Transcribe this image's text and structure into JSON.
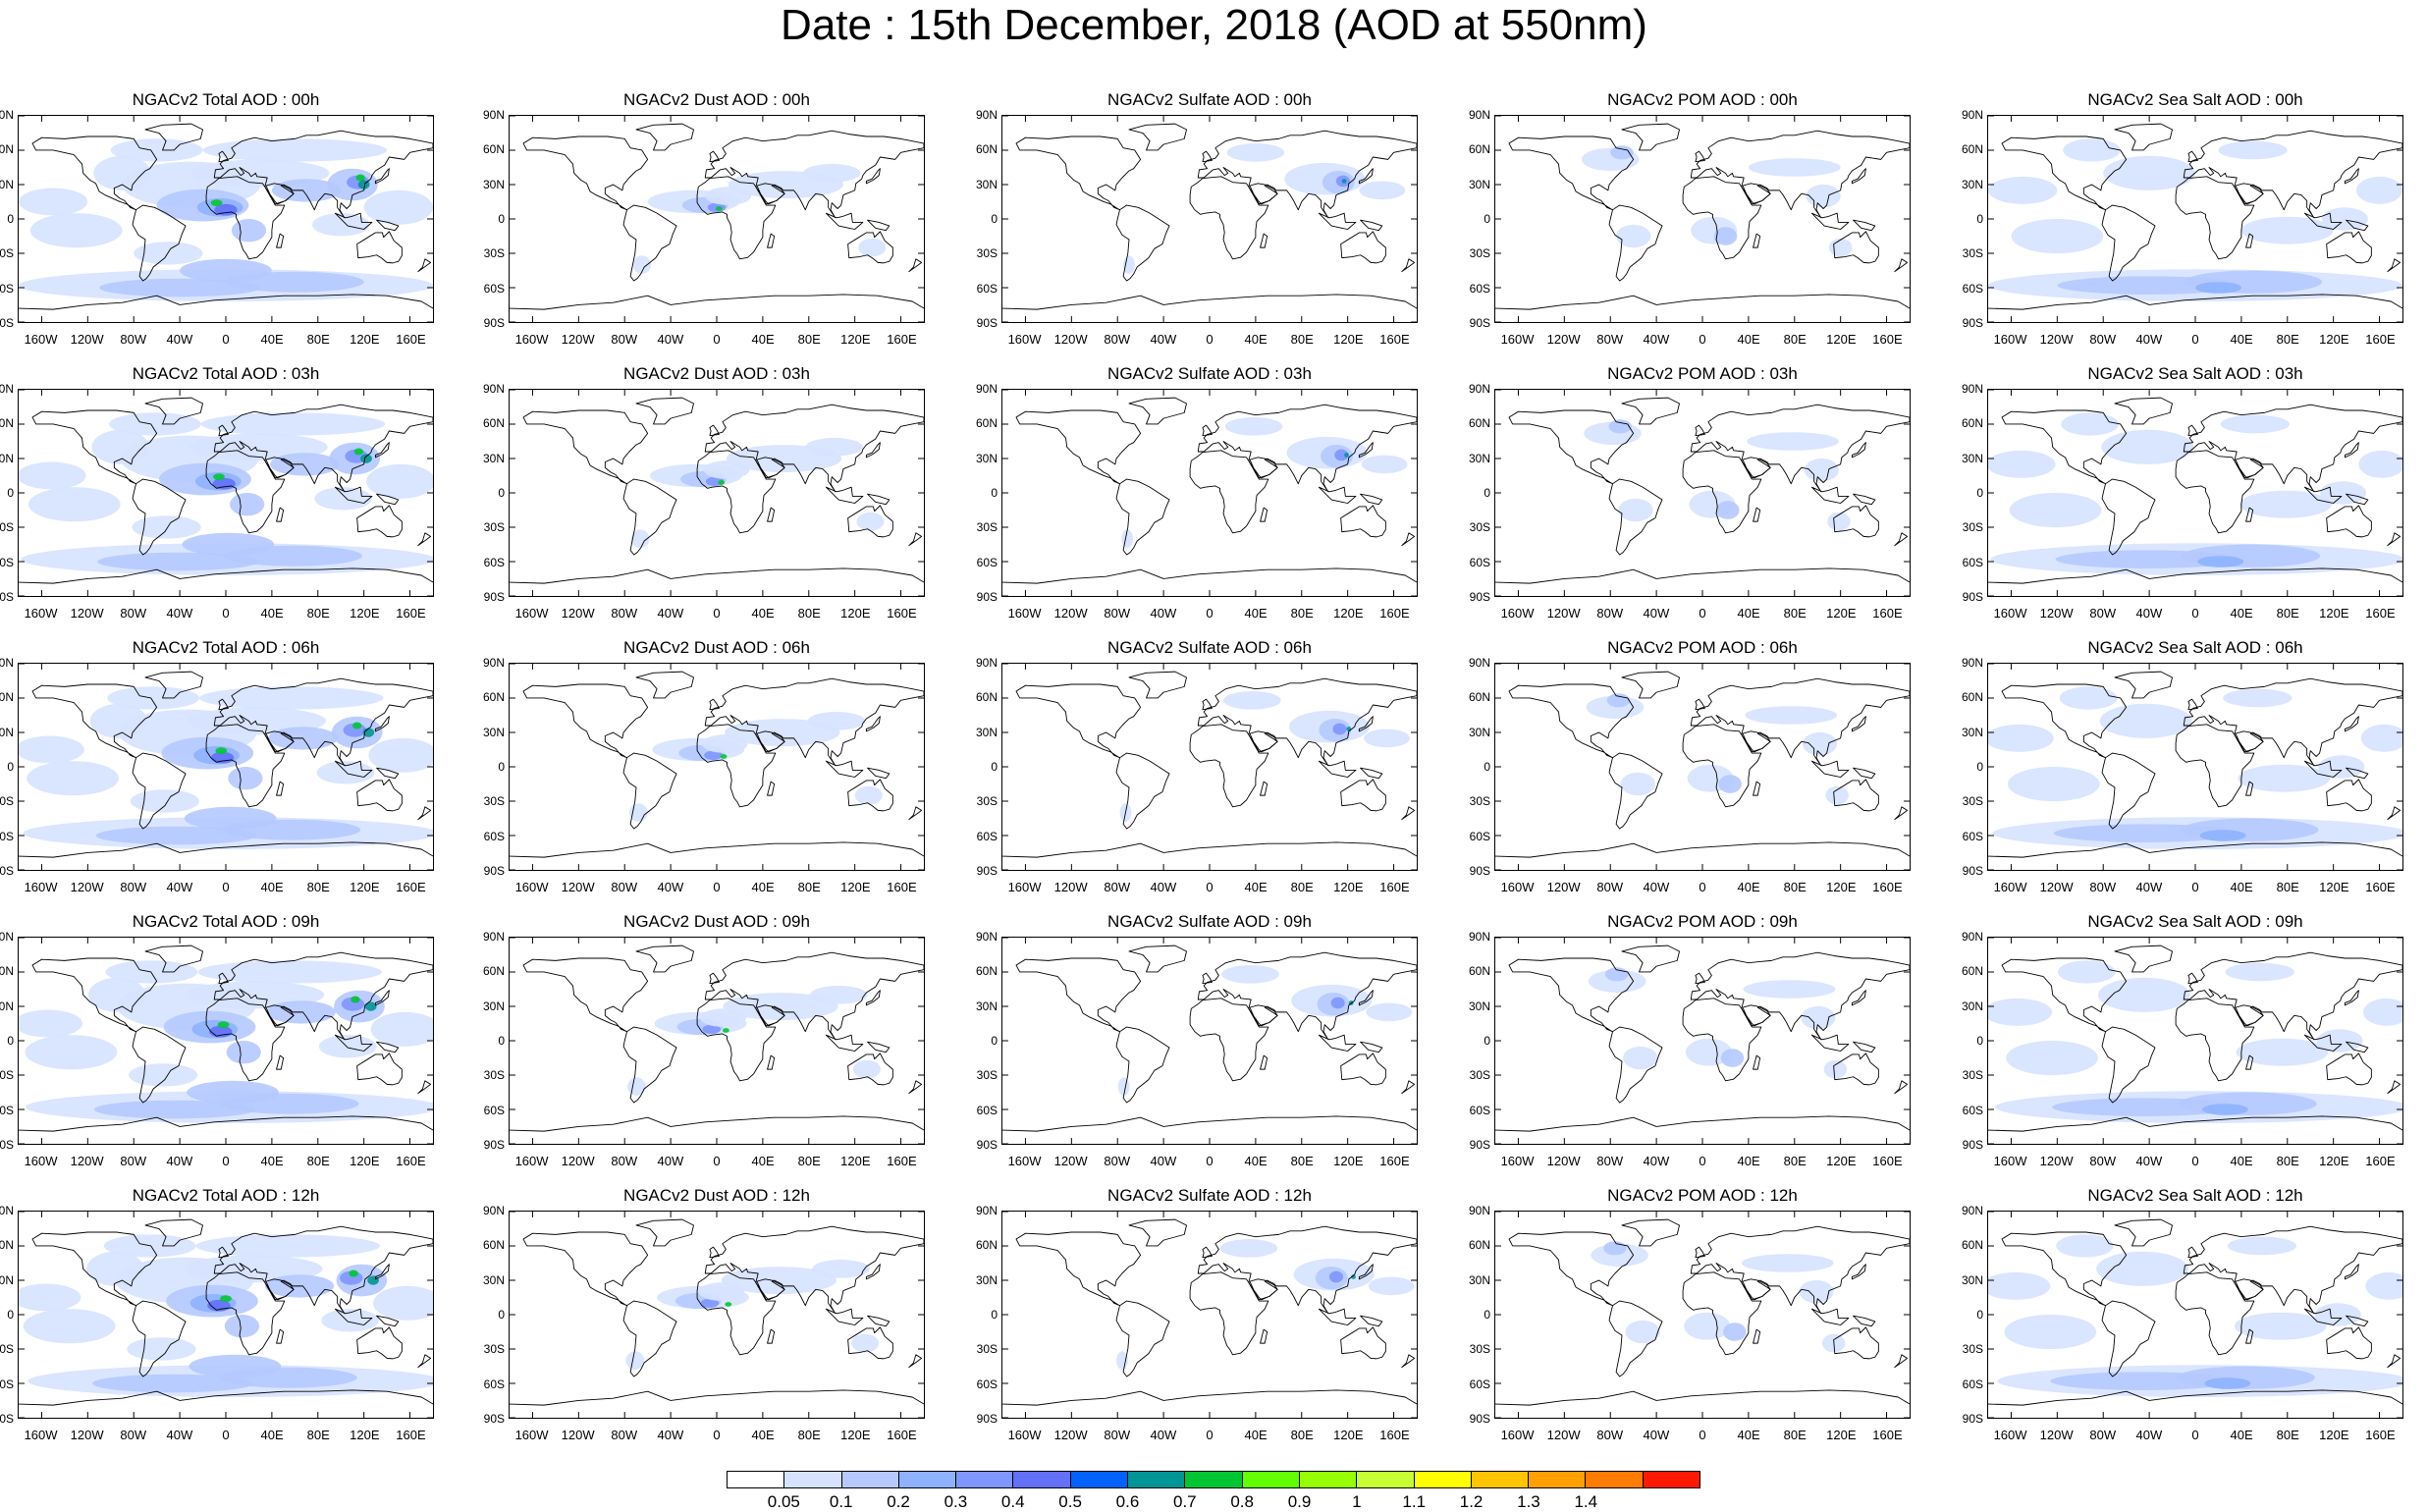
{
  "title": "Date : 15th December, 2018 (AOD at 550nm)",
  "panels": [
    {
      "title": "NGACv2 Total AOD : 00h",
      "field": "total",
      "hour": 0
    },
    {
      "title": "NGACv2 Dust AOD : 00h",
      "field": "dust",
      "hour": 0
    },
    {
      "title": "NGACv2 Sulfate AOD : 00h",
      "field": "sulfate",
      "hour": 0
    },
    {
      "title": "NGACv2 POM AOD : 00h",
      "field": "pom",
      "hour": 0
    },
    {
      "title": "NGACv2 Sea Salt AOD : 00h",
      "field": "seasalt",
      "hour": 0
    },
    {
      "title": "NGACv2 Total AOD : 03h",
      "field": "total",
      "hour": 3
    },
    {
      "title": "NGACv2 Dust AOD : 03h",
      "field": "dust",
      "hour": 3
    },
    {
      "title": "NGACv2 Sulfate AOD : 03h",
      "field": "sulfate",
      "hour": 3
    },
    {
      "title": "NGACv2 POM AOD : 03h",
      "field": "pom",
      "hour": 3
    },
    {
      "title": "NGACv2 Sea Salt AOD : 03h",
      "field": "seasalt",
      "hour": 3
    },
    {
      "title": "NGACv2 Total AOD : 06h",
      "field": "total",
      "hour": 6
    },
    {
      "title": "NGACv2 Dust AOD : 06h",
      "field": "dust",
      "hour": 6
    },
    {
      "title": "NGACv2 Sulfate AOD : 06h",
      "field": "sulfate",
      "hour": 6
    },
    {
      "title": "NGACv2 POM AOD : 06h",
      "field": "pom",
      "hour": 6
    },
    {
      "title": "NGACv2 Sea Salt AOD : 06h",
      "field": "seasalt",
      "hour": 6
    },
    {
      "title": "NGACv2 Total AOD : 09h",
      "field": "total",
      "hour": 9
    },
    {
      "title": "NGACv2 Dust AOD : 09h",
      "field": "dust",
      "hour": 9
    },
    {
      "title": "NGACv2 Sulfate AOD : 09h",
      "field": "sulfate",
      "hour": 9
    },
    {
      "title": "NGACv2 POM AOD : 09h",
      "field": "pom",
      "hour": 9
    },
    {
      "title": "NGACv2 Sea Salt  AOD : 09h",
      "field": "seasalt",
      "hour": 9
    },
    {
      "title": "NGACv2 Total AOD : 12h",
      "field": "total",
      "hour": 12
    },
    {
      "title": "NGACv2 Dust AOD : 12h",
      "field": "dust",
      "hour": 12
    },
    {
      "title": "NGACv2 Sulfate AOD : 12h",
      "field": "sulfate",
      "hour": 12
    },
    {
      "title": "NGACv2 POM  AOD : 12h",
      "field": "pom",
      "hour": 12
    },
    {
      "title": "NGACv2 Sea Salt  AOD : 12h",
      "field": "seasalt",
      "hour": 12
    }
  ],
  "lat_ticks": [
    "90N",
    "60N",
    "30N",
    "0",
    "30S",
    "60S",
    "90S"
  ],
  "lon_ticks": [
    "160W",
    "120W",
    "80W",
    "40W",
    "0",
    "40E",
    "80E",
    "120E",
    "160E"
  ],
  "lat_values": [
    90,
    60,
    30,
    0,
    -30,
    -60,
    -90
  ],
  "lon_values": [
    -160,
    -120,
    -80,
    -40,
    0,
    40,
    80,
    120,
    160
  ],
  "colorbar": {
    "labels": [
      "0.05",
      "0.1",
      "0.2",
      "0.3",
      "0.4",
      "0.5",
      "0.6",
      "0.7",
      "0.8",
      "0.9",
      "1",
      "1.1",
      "1.2",
      "1.3",
      "1.4"
    ],
    "colors": [
      "#ffffff",
      "#d6e2ff",
      "#b5c9ff",
      "#8eb2ff",
      "#7f96ff",
      "#6370f8",
      "#0063ff",
      "#009696",
      "#00c633",
      "#63ff00",
      "#96ff00",
      "#c6ff33",
      "#ffff00",
      "#ffc600",
      "#ffa000",
      "#ff7c00",
      "#ff1900"
    ]
  }
}
